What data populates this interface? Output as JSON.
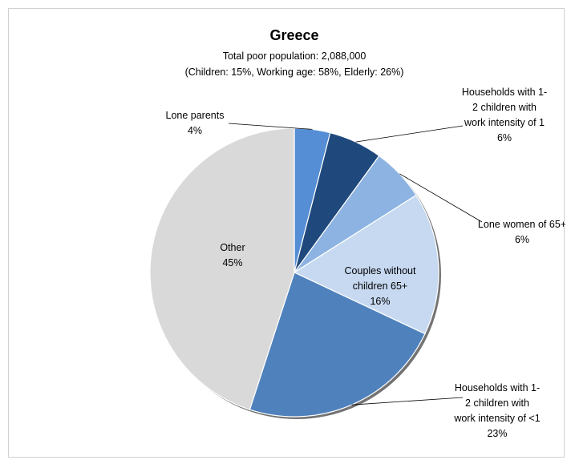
{
  "chart_data": {
    "type": "pie",
    "title": "Greece",
    "subtitle_lines": [
      "Total poor population: 2,088,000",
      "(Children: 15%, Working age: 58%, Elderly: 26%)"
    ],
    "slices": [
      {
        "name": "Lone parents",
        "label_lines": [
          "Lone parents",
          "4%"
        ],
        "value": 4,
        "color": "#558ed5"
      },
      {
        "name": "Households with 1-2 children with work intensity of 1",
        "label_lines": [
          "Households with 1-",
          "2 children with",
          "work intensity of 1",
          "6%"
        ],
        "value": 6,
        "color": "#1f497d"
      },
      {
        "name": "Lone women of 65+",
        "label_lines": [
          "Lone women of 65+",
          "6%"
        ],
        "value": 6,
        "color": "#8db3e2"
      },
      {
        "name": "Couples without children 65+",
        "label_lines": [
          "Couples without",
          "children 65+",
          "16%"
        ],
        "value": 16,
        "color": "#c6d9f1"
      },
      {
        "name": "Households with 1-2 children with work intensity of <1",
        "label_lines": [
          "Households with 1-",
          "2 children with",
          "work intensity of <1",
          "23%"
        ],
        "value": 23,
        "color": "#4f81bd"
      },
      {
        "name": "Other",
        "label_lines": [
          "Other",
          "45%"
        ],
        "value": 45,
        "color": "#d9d9d9"
      }
    ]
  }
}
